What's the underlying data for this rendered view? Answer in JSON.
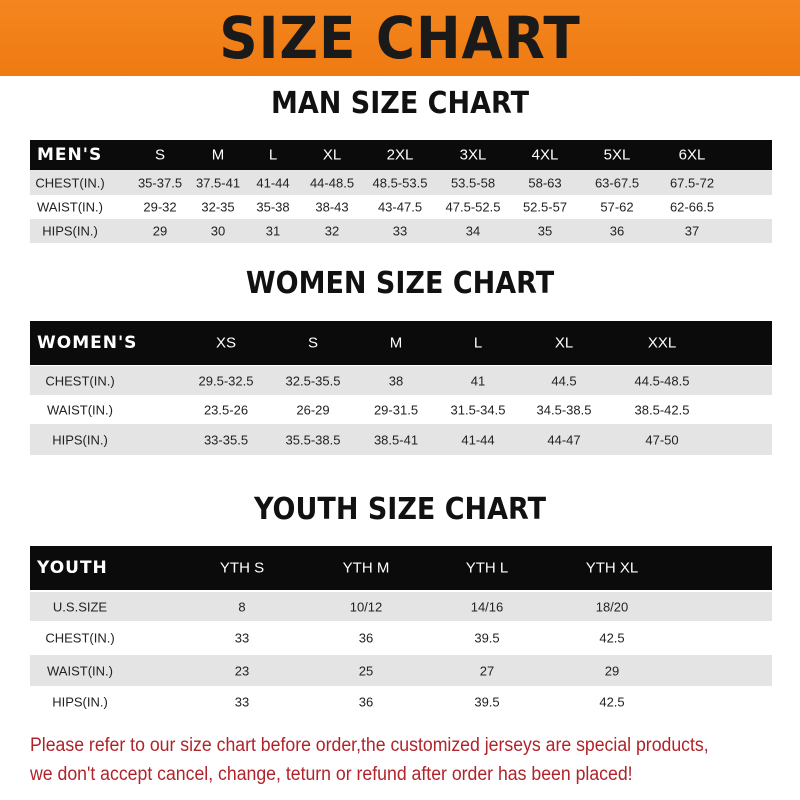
{
  "banner_title": "SIZE CHART",
  "men": {
    "title": "MAN SIZE CHART",
    "header": [
      "MEN'S",
      "S",
      "M",
      "L",
      "XL",
      "2XL",
      "3XL",
      "4XL",
      "5XL",
      "6XL"
    ],
    "rows": [
      [
        "CHEST(IN.)",
        "35-37.5",
        "37.5-41",
        "41-44",
        "44-48.5",
        "48.5-53.5",
        "53.5-58",
        "58-63",
        "63-67.5",
        "67.5-72"
      ],
      [
        "WAIST(IN.)",
        "29-32",
        "32-35",
        "35-38",
        "38-43",
        "43-47.5",
        "47.5-52.5",
        "52.5-57",
        "57-62",
        "62-66.5"
      ],
      [
        "HIPS(IN.)",
        "29",
        "30",
        "31",
        "32",
        "33",
        "34",
        "35",
        "36",
        "37"
      ]
    ]
  },
  "women": {
    "title": "WOMEN SIZE CHART",
    "header": [
      "WOMEN'S",
      "XS",
      "S",
      "M",
      "L",
      "XL",
      "XXL"
    ],
    "rows": [
      [
        "CHEST(IN.)",
        "29.5-32.5",
        "32.5-35.5",
        "38",
        "41",
        "44.5",
        "44.5-48.5"
      ],
      [
        "WAIST(IN.)",
        "23.5-26",
        "26-29",
        "29-31.5",
        "31.5-34.5",
        "34.5-38.5",
        "38.5-42.5"
      ],
      [
        "HIPS(IN.)",
        "33-35.5",
        "35.5-38.5",
        "38.5-41",
        "41-44",
        "44-47",
        "47-50"
      ]
    ]
  },
  "youth": {
    "title": "YOUTH SIZE CHART",
    "header": [
      "YOUTH",
      "YTH S",
      "YTH M",
      "YTH L",
      "YTH XL"
    ],
    "rows": [
      [
        "U.S.SIZE",
        "8",
        "10/12",
        "14/16",
        "18/20"
      ],
      [
        "CHEST(IN.)",
        "33",
        "36",
        "39.5",
        "42.5"
      ],
      [
        "WAIST(IN.)",
        "23",
        "25",
        "27",
        "29"
      ],
      [
        "HIPS(IN.)",
        "33",
        "36",
        "39.5",
        "42.5"
      ]
    ]
  },
  "notice": [
    "Please refer to our size chart before order,the customized jerseys are special products,",
    "we don't accept cancel, change, teturn or refund after order has been placed!"
  ],
  "colors": {
    "banner": "#f08019",
    "header_row": "#0b0b0b",
    "stripe": "#e4e4e4",
    "notice": "#b0232a"
  }
}
